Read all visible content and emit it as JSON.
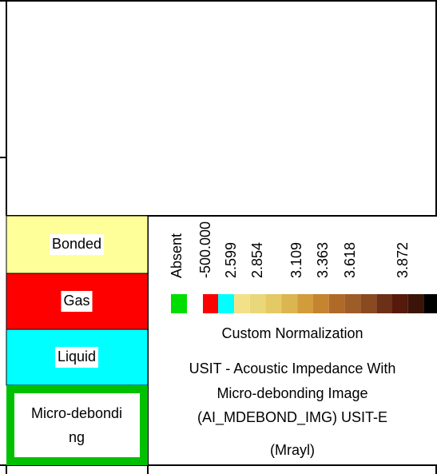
{
  "legend_items": [
    {
      "label": "Bonded",
      "color": "#ffff99"
    },
    {
      "label": "Gas",
      "color": "#ff0000"
    },
    {
      "label": "Liquid",
      "color": "#00ffff"
    },
    {
      "label": "Micro-debonding",
      "color": "#00c000"
    }
  ],
  "scale_labels": [
    "Absent",
    "-500.000",
    "2.599",
    "2.854",
    "3.109",
    "3.363",
    "3.618",
    "3.872"
  ],
  "swatches": [
    "#00dd00",
    "#ff0000",
    "#00ffff",
    "#f3e18a",
    "#ead77a",
    "#e4c965",
    "#dbb54f",
    "#d29c3b",
    "#c48430",
    "#b06a28",
    "#9e5c28",
    "#8a4a1f",
    "#6c3016",
    "#551a0c",
    "#3a1507",
    "#000000"
  ],
  "normalization": "Custom Normalization",
  "description": [
    "USIT - Acoustic Impedance With",
    "Micro-debonding Image",
    "(AI_MDEBOND_IMG) USIT-E"
  ],
  "unit": "(Mrayl)"
}
